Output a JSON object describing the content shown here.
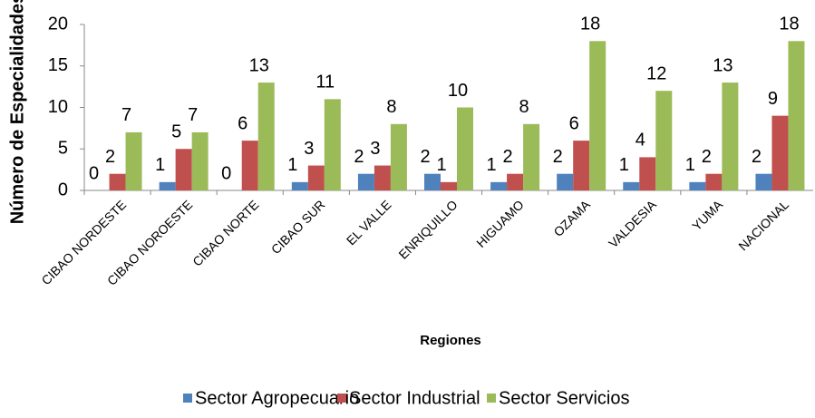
{
  "chart_data": {
    "type": "bar",
    "y_label": "Número de Especialidades",
    "x_label": "Regiones",
    "categories": [
      "CIBAO NORDESTE",
      "CIBAO NOROESTE",
      "CIBAO NORTE",
      "CIBAO SUR",
      "EL VALLE",
      "ENRIQUILLO",
      "HIGUAMO",
      "OZAMA",
      "VALDESIA",
      "YUMA",
      "NACIONAL"
    ],
    "series": [
      {
        "name": "Sector Agropecuario",
        "color": "#4f81bd",
        "values": [
          0,
          1,
          0,
          1,
          2,
          2,
          1,
          2,
          1,
          1,
          2
        ]
      },
      {
        "name": "Sector Industrial",
        "color": "#c0504d",
        "values": [
          2,
          5,
          6,
          3,
          3,
          1,
          2,
          6,
          4,
          2,
          9
        ]
      },
      {
        "name": "Sector Servicios",
        "color": "#9bbb59",
        "values": [
          7,
          7,
          13,
          11,
          8,
          10,
          8,
          18,
          12,
          13,
          18
        ]
      }
    ],
    "ylim": [
      0,
      20
    ],
    "yticks": [
      0,
      5,
      10,
      15,
      20
    ],
    "grid": false,
    "legend": "bottom"
  }
}
